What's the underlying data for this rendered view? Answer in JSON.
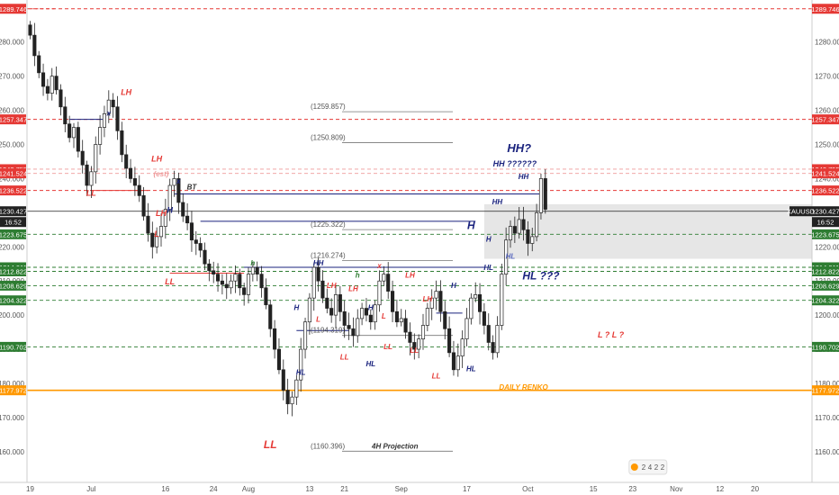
{
  "chart_data": {
    "type": "candlestick",
    "symbol": "XAUUSD",
    "ylim": [
      1156,
      1291
    ],
    "y_ticks": [
      1160,
      1170,
      1180,
      1190,
      1200,
      1210,
      1220,
      1230,
      1240,
      1250,
      1260,
      1270,
      1280
    ],
    "y_tick_labels": [
      "1160.000",
      "1170.000",
      "1180.000",
      "1190.000",
      "1200.000",
      "1210.000",
      "1220.000",
      "1230.000",
      "1240.000",
      "1250.000",
      "1260.000",
      "1270.000",
      "1280.000"
    ],
    "x_labels": [
      "19",
      "Jul",
      "16",
      "24",
      "Aug",
      "13",
      "21",
      "Sep",
      "17",
      "Oct",
      "15",
      "23",
      "Nov",
      "12",
      "20"
    ],
    "x_label_bars": [
      0,
      14,
      31,
      42,
      50,
      64,
      72,
      85,
      100,
      114,
      129,
      138,
      148,
      158,
      166
    ],
    "closes": [
      1282,
      1276,
      1271,
      1267,
      1265,
      1270,
      1266,
      1261,
      1256,
      1252,
      1255,
      1248,
      1244,
      1238,
      1242,
      1250,
      1255,
      1259,
      1263,
      1261,
      1254,
      1247,
      1243,
      1240,
      1238,
      1235,
      1229,
      1224,
      1220,
      1223,
      1226,
      1231,
      1238,
      1240,
      1233,
      1229,
      1227,
      1222,
      1221,
      1219,
      1215,
      1213,
      1212,
      1210,
      1209,
      1208,
      1210,
      1212,
      1208,
      1206,
      1212,
      1214,
      1212,
      1208,
      1203,
      1196,
      1190,
      1184,
      1178,
      1174,
      1176,
      1181,
      1190,
      1198,
      1205,
      1214,
      1210,
      1205,
      1202,
      1200,
      1206,
      1201,
      1197,
      1196,
      1194,
      1199,
      1202,
      1200,
      1198,
      1203,
      1210,
      1212,
      1207,
      1201,
      1198,
      1199,
      1195,
      1192,
      1190,
      1193,
      1197,
      1202,
      1205,
      1207,
      1201,
      1196,
      1189,
      1184,
      1188,
      1193,
      1199,
      1205,
      1206,
      1201,
      1197,
      1192,
      1189,
      1197,
      1212,
      1222,
      1226,
      1224,
      1228,
      1225,
      1221,
      1223,
      1230,
      1240,
      1231
    ],
    "levels": [
      {
        "label": "1289.746",
        "value": 1289.746,
        "color": "#e53935",
        "style": "dashed"
      },
      {
        "label": "1257.347",
        "value": 1257.347,
        "color": "#e53935",
        "style": "dashed"
      },
      {
        "label": "1242.755",
        "value": 1242.755,
        "color": "#ef9a9a",
        "style": "dashed"
      },
      {
        "label": "1241.524",
        "value": 1241.524,
        "color": "#ef9a9a",
        "style": "dashed"
      },
      {
        "label": "1236.522",
        "value": 1236.522,
        "color": "#e53935",
        "style": "dashed"
      },
      {
        "label": "1223.675",
        "value": 1223.675,
        "color": "#2e7d32",
        "style": "dashed"
      },
      {
        "label": "1214.011",
        "value": 1214.011,
        "color": "#2e7d32",
        "style": "dashed"
      },
      {
        "label": "1212.822",
        "value": 1212.822,
        "color": "#2e7d32",
        "style": "dashed"
      },
      {
        "label": "1208.629",
        "value": 1208.629,
        "color": "#2e7d32",
        "style": "dashed"
      },
      {
        "label": "1204.322",
        "value": 1204.322,
        "color": "#2e7d32",
        "style": "dashed"
      },
      {
        "label": "1190.702",
        "value": 1190.702,
        "color": "#2e7d32",
        "style": "dashed"
      },
      {
        "label": "1177.972",
        "value": 1177.972,
        "color": "#ff9800",
        "style": "solid"
      }
    ],
    "current_price": {
      "label": "1230.427",
      "value": 1230.427,
      "time": "16:52"
    },
    "projections": [
      {
        "label": "(1259.857)",
        "value": 1259.857
      },
      {
        "label": "(1250.809)",
        "value": 1250.809
      },
      {
        "label": "(1225.322)",
        "value": 1225.322
      },
      {
        "label": "(1216.274)",
        "value": 1216.274
      },
      {
        "label": "(1194.319)",
        "value": 1194.319
      },
      {
        "label": "(1160.396)",
        "value": 1160.396
      }
    ],
    "projection_caption": "4H Projection",
    "range_box": {
      "top": 1232.5,
      "bottom": 1216.5
    },
    "annotations": [
      {
        "text": "LH",
        "bar": 22,
        "value": 1264.5,
        "color": "#e53935",
        "size": 9
      },
      {
        "text": "LL",
        "bar": 14,
        "value": 1235,
        "color": "#e53935",
        "size": 9
      },
      {
        "text": "LH",
        "bar": 29,
        "value": 1245,
        "color": "#e53935",
        "size": 9
      },
      {
        "text": "LH",
        "bar": 30,
        "value": 1229,
        "color": "#e53935",
        "size": 9
      },
      {
        "text": "L",
        "bar": 29,
        "value": 1223,
        "color": "#e53935",
        "size": 9
      },
      {
        "text": "LL",
        "bar": 32,
        "value": 1209,
        "color": "#e53935",
        "size": 9
      },
      {
        "text": "H",
        "bar": 32,
        "value": 1230,
        "color": "#1a237e",
        "size": 9
      },
      {
        "text": "BT",
        "bar": 37,
        "value": 1236.8,
        "color": "#333333",
        "size": 8
      },
      {
        "text": "(est)",
        "bar": 30,
        "value": 1240.6,
        "color": "#ef9a9a",
        "size": 8
      },
      {
        "text": "HH",
        "bar": 66,
        "value": 1214.6,
        "color": "#1a237e",
        "size": 8
      },
      {
        "text": "h",
        "bar": 51,
        "value": 1214.6,
        "color": "#2e7d32",
        "size": 8
      },
      {
        "text": "h",
        "bar": 75,
        "value": 1211,
        "color": "#2e7d32",
        "size": 8
      },
      {
        "text": "LH",
        "bar": 69,
        "value": 1208,
        "color": "#e53935",
        "size": 8
      },
      {
        "text": "LH",
        "bar": 74,
        "value": 1207,
        "color": "#e53935",
        "size": 8
      },
      {
        "text": "LH",
        "bar": 87,
        "value": 1211,
        "color": "#e53935",
        "size": 8
      },
      {
        "text": "LH",
        "bar": 91,
        "value": 1204,
        "color": "#e53935",
        "size": 8
      },
      {
        "text": "L",
        "bar": 66,
        "value": 1198,
        "color": "#e53935",
        "size": 8
      },
      {
        "text": "L",
        "bar": 81,
        "value": 1199,
        "color": "#e53935",
        "size": 8
      },
      {
        "text": "H",
        "bar": 61,
        "value": 1201.5,
        "color": "#1a237e",
        "size": 8
      },
      {
        "text": "H",
        "bar": 78,
        "value": 1201.5,
        "color": "#1a237e",
        "size": 8
      },
      {
        "text": "H",
        "bar": 97,
        "value": 1208,
        "color": "#1a237e",
        "size": 8
      },
      {
        "text": "HL",
        "bar": 62,
        "value": 1182.5,
        "color": "#1a237e",
        "size": 8
      },
      {
        "text": "HL",
        "bar": 78,
        "value": 1185,
        "color": "#1a237e",
        "size": 8
      },
      {
        "text": "HL",
        "bar": 101,
        "value": 1183.5,
        "color": "#1a237e",
        "size": 8
      },
      {
        "text": "LL",
        "bar": 72,
        "value": 1187,
        "color": "#e53935",
        "size": 8
      },
      {
        "text": "LL",
        "bar": 82,
        "value": 1190,
        "color": "#e53935",
        "size": 8
      },
      {
        "text": "LL",
        "bar": 88,
        "value": 1189,
        "color": "#e53935",
        "size": 8
      },
      {
        "text": "LL",
        "bar": 93,
        "value": 1181.5,
        "color": "#e53935",
        "size": 8
      },
      {
        "text": "LL",
        "bar": 55,
        "value": 1161,
        "color": "#e53935",
        "size": 12
      },
      {
        "text": "x",
        "bar": 80,
        "value": 1213.7,
        "color": "#e53935",
        "size": 8
      },
      {
        "text": "x",
        "bar": 34,
        "value": 1238.5,
        "color": "#1a237e",
        "size": 8
      },
      {
        "text": "x",
        "bar": 18,
        "value": 1258.5,
        "color": "#1a237e",
        "size": 8
      },
      {
        "text": "HH",
        "bar": 107,
        "value": 1232.5,
        "color": "#1a237e",
        "size": 8
      },
      {
        "text": "H",
        "bar": 105,
        "value": 1221.5,
        "color": "#1a237e",
        "size": 8
      },
      {
        "text": "H",
        "bar": 101,
        "value": 1225.2,
        "color": "#1a237e",
        "size": 12
      },
      {
        "text": "HL",
        "bar": 105,
        "value": 1213.2,
        "color": "#1a237e",
        "size": 8
      },
      {
        "text": "HL",
        "bar": 110,
        "value": 1216.5,
        "color": "#5c6bc0",
        "size": 8
      },
      {
        "text": "HH",
        "bar": 113,
        "value": 1239.8,
        "color": "#1a237e",
        "size": 8
      },
      {
        "text": "HH?",
        "bar": 112,
        "value": 1247.8,
        "color": "#1a237e",
        "size": 13
      },
      {
        "text": "HH ??????",
        "bar": 111,
        "value": 1243.5,
        "color": "#1a237e",
        "size": 9
      },
      {
        "text": "HL ???",
        "bar": 117,
        "value": 1210.5,
        "color": "#1a237e",
        "size": 12
      },
      {
        "text": "L ? L ?",
        "bar": 133,
        "value": 1193.5,
        "color": "#e53935",
        "size": 9
      },
      {
        "text": "DAILY RENKO",
        "bar": 113,
        "value": 1178.2,
        "color": "#ff9800",
        "size": 8
      }
    ],
    "segments": [
      {
        "bar0": 0,
        "bar1": 6,
        "value0": 1289.746,
        "value1": 1289.746,
        "color": "#e53935",
        "dash": "3,3"
      },
      {
        "bar0": 9,
        "bar1": 17,
        "value0": 1257.347,
        "value1": 1257.347,
        "color": "#1a237e",
        "dash": ""
      },
      {
        "bar0": 14,
        "bar1": 27,
        "value0": 1236.522,
        "value1": 1236.522,
        "color": "#e53935",
        "dash": ""
      },
      {
        "bar0": 33,
        "bar1": 117,
        "value0": 1235.5,
        "value1": 1235.5,
        "color": "#1a237e",
        "dash": ""
      },
      {
        "bar0": 39,
        "bar1": 102,
        "value0": 1227.5,
        "value1": 1227.5,
        "color": "#1a237e",
        "dash": ""
      },
      {
        "bar0": 32,
        "bar1": 49,
        "value0": 1212.3,
        "value1": 1212.3,
        "color": "#e53935",
        "dash": ""
      },
      {
        "bar0": 49,
        "bar1": 105,
        "value0": 1214.011,
        "value1": 1214.011,
        "color": "#1a237e",
        "dash": ""
      },
      {
        "bar0": 93,
        "bar1": 99,
        "value0": 1200.6,
        "value1": 1200.6,
        "color": "#1a237e",
        "dash": ""
      },
      {
        "bar0": 61,
        "bar1": 73,
        "value0": 1195.5,
        "value1": 1195.5,
        "color": "#1a237e",
        "dash": ""
      }
    ],
    "watermark": [
      "2",
      "4",
      "2",
      "2"
    ]
  }
}
